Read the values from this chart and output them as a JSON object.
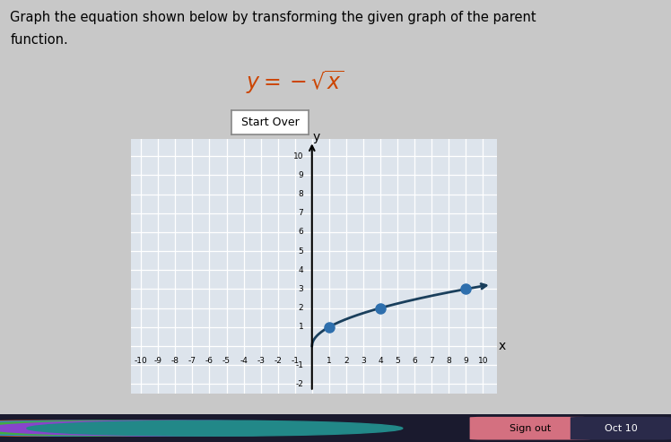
{
  "title_text1": "Graph the equation shown below by transforming the given graph of the parent",
  "title_text2": "function.",
  "button_text": "Start Over",
  "xlim": [
    -10,
    10
  ],
  "ylim": [
    -2,
    10
  ],
  "curve_color": "#1a3f5c",
  "dot_color": "#2e6fad",
  "dot_points": [
    [
      1,
      1
    ],
    [
      4,
      2
    ],
    [
      9,
      3
    ]
  ],
  "page_bg": "#c8c8c8",
  "grid_area_bg": "#dde4ec",
  "grid_color": "#ffffff",
  "bottom_bar_color": "#1a1a2e",
  "sign_out_btn": "#e8a0b0",
  "oct10_btn": "#333355"
}
